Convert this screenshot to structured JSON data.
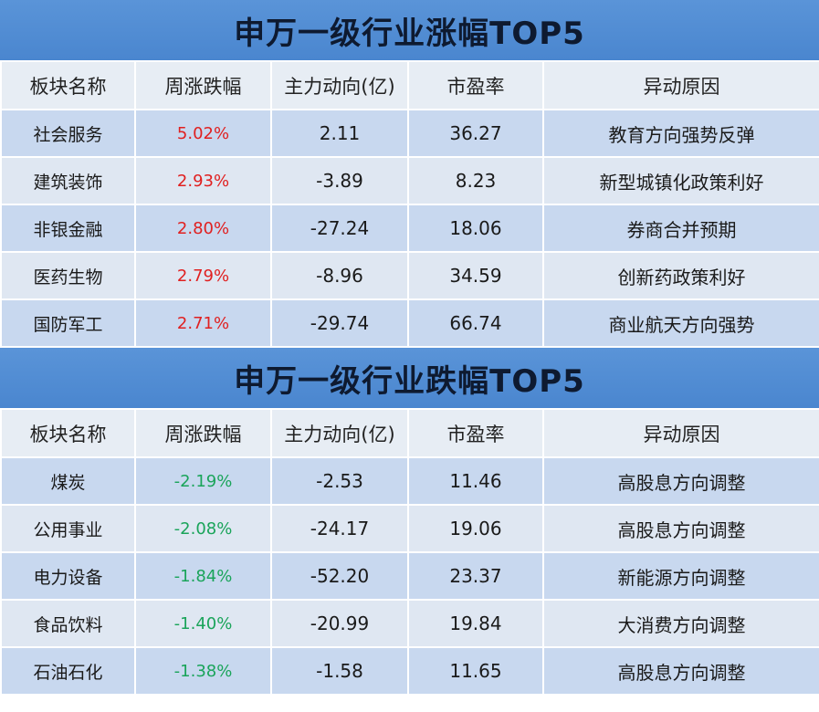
{
  "colors": {
    "banner": "#4a86cf",
    "up": "#e02020",
    "down": "#1aa45a"
  },
  "columns": [
    "板块名称",
    "周涨跌幅",
    "主力动向(亿)",
    "市盈率",
    "异动原因"
  ],
  "top": {
    "title": "申万一级行业涨幅TOP5",
    "rows": [
      {
        "name": "社会服务",
        "change": "5.02%",
        "flow": "2.11",
        "pe": "36.27",
        "reason": "教育方向强势反弹"
      },
      {
        "name": "建筑装饰",
        "change": "2.93%",
        "flow": "-3.89",
        "pe": "8.23",
        "reason": "新型城镇化政策利好"
      },
      {
        "name": "非银金融",
        "change": "2.80%",
        "flow": "-27.24",
        "pe": "18.06",
        "reason": "券商合并预期"
      },
      {
        "name": "医药生物",
        "change": "2.79%",
        "flow": "-8.96",
        "pe": "34.59",
        "reason": "创新药政策利好"
      },
      {
        "name": "国防军工",
        "change": "2.71%",
        "flow": "-29.74",
        "pe": "66.74",
        "reason": "商业航天方向强势"
      }
    ]
  },
  "bottom": {
    "title": "申万一级行业跌幅TOP5",
    "rows": [
      {
        "name": "煤炭",
        "change": "-2.19%",
        "flow": "-2.53",
        "pe": "11.46",
        "reason": "高股息方向调整"
      },
      {
        "name": "公用事业",
        "change": "-2.08%",
        "flow": "-24.17",
        "pe": "19.06",
        "reason": "高股息方向调整"
      },
      {
        "name": "电力设备",
        "change": "-1.84%",
        "flow": "-52.20",
        "pe": "23.37",
        "reason": "新能源方向调整"
      },
      {
        "name": "食品饮料",
        "change": "-1.40%",
        "flow": "-20.99",
        "pe": "19.84",
        "reason": "大消费方向调整"
      },
      {
        "name": "石油石化",
        "change": "-1.38%",
        "flow": "-1.58",
        "pe": "11.65",
        "reason": "高股息方向调整"
      }
    ]
  }
}
